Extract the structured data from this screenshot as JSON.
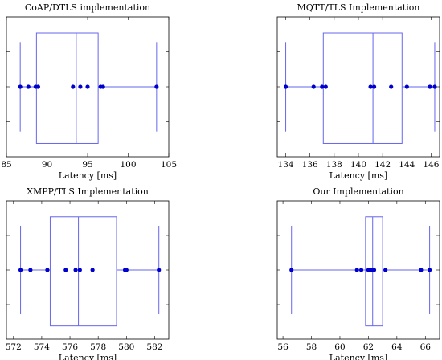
{
  "chart_data": [
    {
      "type": "box",
      "title": "CoAP/DTLS implementation",
      "xlabel": "Latency [ms]",
      "ylabel": "",
      "xlim": [
        85,
        105
      ],
      "xticks": [
        85,
        90,
        95,
        100,
        105
      ],
      "box": {
        "min": 86.7,
        "q1": 88.7,
        "median": 93.6,
        "q3": 96.3,
        "max": 103.5
      },
      "points": [
        86.7,
        87.7,
        88.6,
        88.9,
        93.2,
        94.1,
        95.0,
        96.6,
        96.9,
        103.5
      ]
    },
    {
      "type": "box",
      "title": "MQTT/TLS Implementation",
      "xlabel": "Latency [ms]",
      "ylabel": "",
      "xlim": [
        133.3,
        146.7
      ],
      "xticks": [
        134,
        136,
        138,
        140,
        142,
        144,
        146
      ],
      "box": {
        "min": 134.0,
        "q1": 137.1,
        "median": 141.2,
        "q3": 143.6,
        "max": 146.3
      },
      "points": [
        134.0,
        136.3,
        137.0,
        137.3,
        141.0,
        141.3,
        142.7,
        144.0,
        145.9,
        146.3
      ]
    },
    {
      "type": "box",
      "title": "XMPP/TLS Implementation",
      "xlabel": "Latency [ms]",
      "ylabel": "",
      "xlim": [
        571.5,
        583.0
      ],
      "xticks": [
        572,
        574,
        576,
        578,
        580,
        582
      ],
      "box": {
        "min": 572.5,
        "q1": 574.6,
        "median": 576.6,
        "q3": 579.3,
        "max": 582.3
      },
      "points": [
        572.5,
        573.2,
        574.4,
        575.7,
        576.4,
        576.7,
        577.6,
        579.9,
        580.0,
        582.3
      ]
    },
    {
      "type": "box",
      "title": "Our Implementation",
      "xlabel": "Latency [ms]",
      "ylabel": "",
      "xlim": [
        55.6,
        67.0
      ],
      "xticks": [
        56,
        58,
        60,
        62,
        64,
        66
      ],
      "box": {
        "min": 56.6,
        "q1": 61.8,
        "median": 62.3,
        "q3": 63.0,
        "max": 66.3
      },
      "points": [
        56.6,
        61.2,
        61.5,
        62.0,
        62.2,
        62.4,
        63.2,
        65.7,
        66.3
      ]
    }
  ],
  "colors": {
    "series": "#0000cc",
    "box": "#6666ee",
    "frame": "#000000"
  }
}
